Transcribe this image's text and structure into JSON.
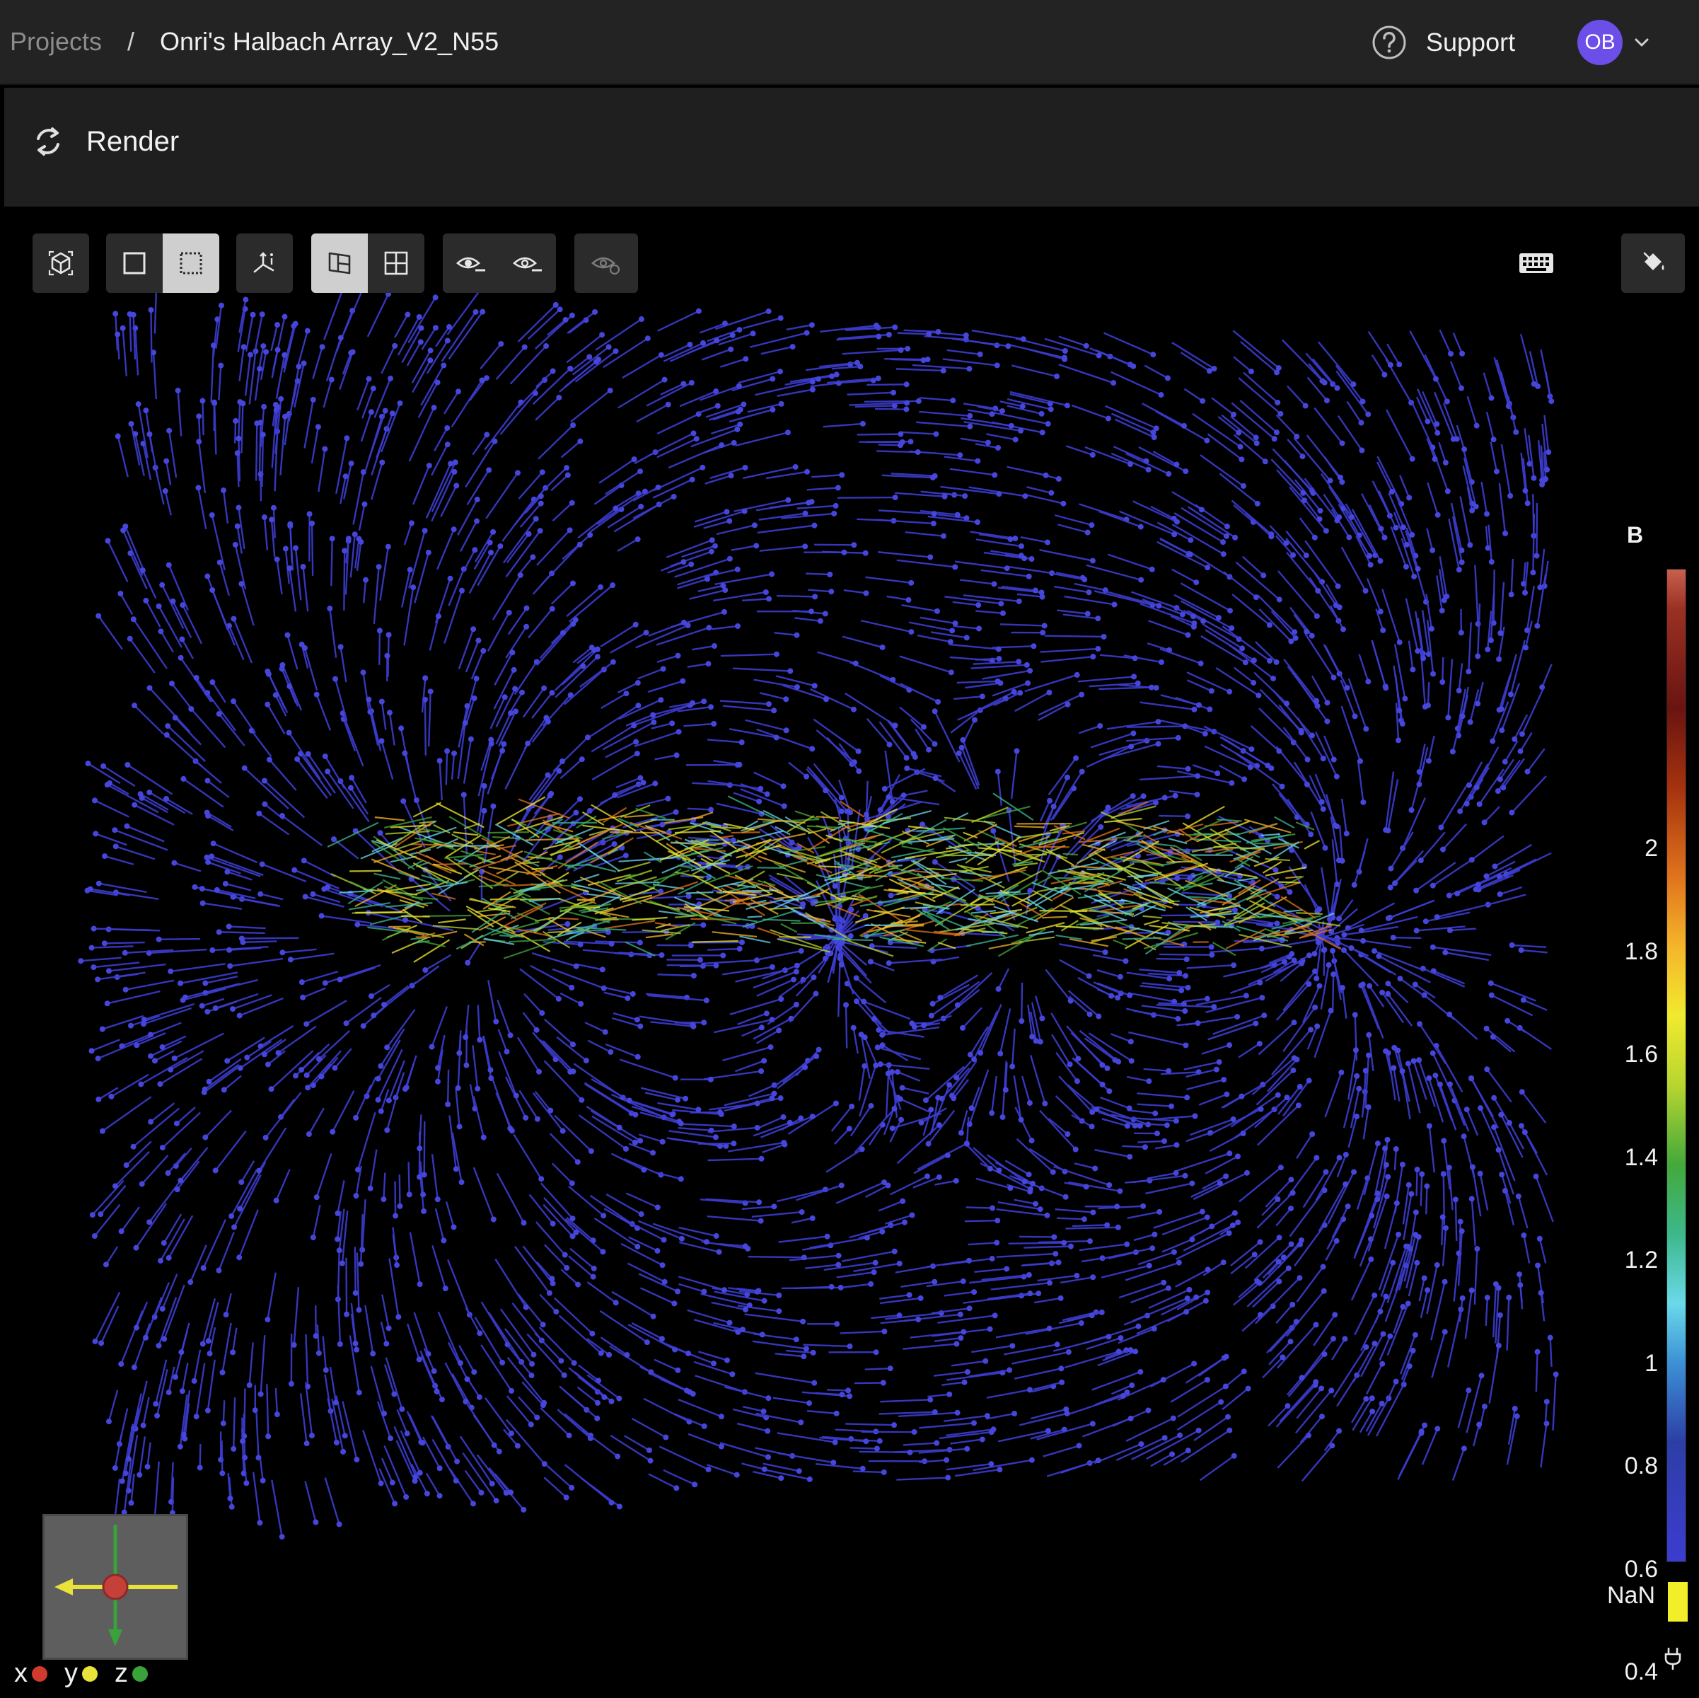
{
  "header": {
    "breadcrumb_root": "Projects",
    "separator": "/",
    "project_name": "Onri's Halbach Array_V2_N55",
    "support_label": "Support",
    "avatar_initials": "OB",
    "icons": [
      "help-circle-icon",
      "chevron-down-icon"
    ]
  },
  "render_bar": {
    "render_label": "Render",
    "icon": "refresh-icon"
  },
  "toolbar": {
    "groups": [
      [
        "reset-camera-icon"
      ],
      [
        "select-box-icon",
        "select-dashed-icon"
      ],
      [
        "axes-icon"
      ],
      [
        "layout-single-icon",
        "layout-grid-icon"
      ],
      [
        "hide-icon",
        "show-icon"
      ],
      [
        "eye-reset-icon"
      ]
    ],
    "active": [
      "select-dashed-icon",
      "layout-single-icon"
    ],
    "right_icons": [
      "keyboard-icon",
      "paint-bucket-icon"
    ]
  },
  "colors": {
    "accent": "#6c4ee8",
    "field_low": "#3c3cd0",
    "field_high": "#9a3023"
  },
  "colorbar": {
    "title": "B",
    "ticks": [
      "2",
      "1.8",
      "1.6",
      "1.4",
      "1.2",
      "1",
      "0.8",
      "0.6",
      "0.4"
    ],
    "nan_label": "NaN",
    "nan_color": "#f3ee2a"
  },
  "orientation": {
    "x_label": "x",
    "y_label": "y",
    "z_label": "z",
    "x_color": "#d03a2f",
    "y_color": "#e8e23a",
    "z_color": "#3aa23a"
  }
}
